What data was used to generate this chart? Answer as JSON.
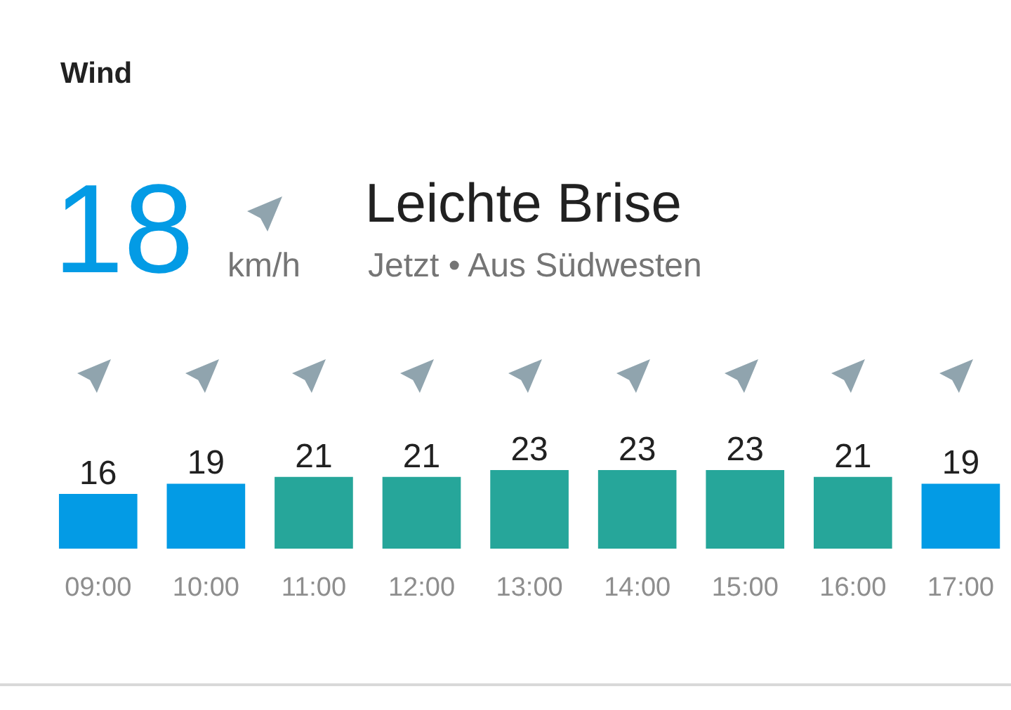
{
  "chart_data": {
    "type": "bar",
    "title": "Wind",
    "annotations": [
      "18",
      "km/h",
      "Leichte Brise",
      "Jetzt • Aus Südwesten"
    ],
    "categories": [
      "09:00",
      "10:00",
      "11:00",
      "12:00",
      "13:00",
      "14:00",
      "15:00",
      "16:00",
      "17:00"
    ],
    "values": [
      16,
      19,
      21,
      21,
      23,
      23,
      23,
      21,
      19
    ],
    "colors": [
      "#039be5",
      "#039be5",
      "#26a69a",
      "#26a69a",
      "#26a69a",
      "#26a69a",
      "#26a69a",
      "#26a69a",
      "#039be5"
    ],
    "data_labels": true,
    "tick_labels": "x"
  }
}
